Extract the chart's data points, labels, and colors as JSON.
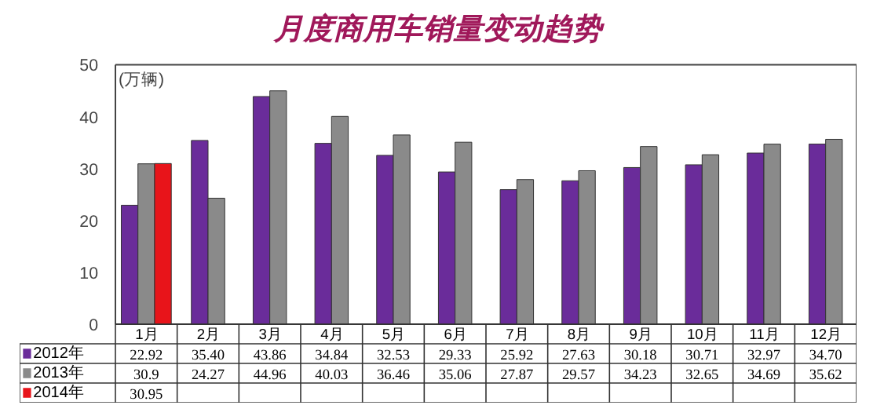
{
  "chart_data": {
    "type": "bar",
    "title": "月度商用车销量变动趋势",
    "ylabel": "(万辆)",
    "categories": [
      "1月",
      "2月",
      "3月",
      "4月",
      "5月",
      "6月",
      "7月",
      "8月",
      "9月",
      "10月",
      "11月",
      "12月"
    ],
    "ylim": [
      0,
      50
    ],
    "yticks": [
      0,
      10,
      20,
      30,
      40,
      50
    ],
    "grid": false,
    "legend": "bottom left",
    "series": [
      {
        "name": "2012年",
        "color": "#6a2c9a",
        "values": [
          22.92,
          35.4,
          43.86,
          34.84,
          32.53,
          29.33,
          25.92,
          27.63,
          30.18,
          30.71,
          32.97,
          34.7
        ],
        "value_labels": [
          "22.92",
          "35.40",
          "43.86",
          "34.84",
          "32.53",
          "29.33",
          "25.92",
          "27.63",
          "30.18",
          "30.71",
          "32.97",
          "34.70"
        ]
      },
      {
        "name": "2013年",
        "color": "#8a8a8a",
        "values": [
          30.9,
          24.27,
          44.96,
          40.03,
          36.46,
          35.06,
          27.87,
          29.57,
          34.23,
          32.65,
          34.69,
          35.62
        ],
        "value_labels": [
          "30.9",
          "24.27",
          "44.96",
          "40.03",
          "36.46",
          "35.06",
          "27.87",
          "29.57",
          "34.23",
          "32.65",
          "34.69",
          "35.62"
        ]
      },
      {
        "name": "2014年",
        "color": "#e8141a",
        "values": [
          30.95,
          null,
          null,
          null,
          null,
          null,
          null,
          null,
          null,
          null,
          null,
          null
        ],
        "value_labels": [
          "30.95",
          null,
          null,
          null,
          null,
          null,
          null,
          null,
          null,
          null,
          null,
          null
        ]
      }
    ]
  }
}
